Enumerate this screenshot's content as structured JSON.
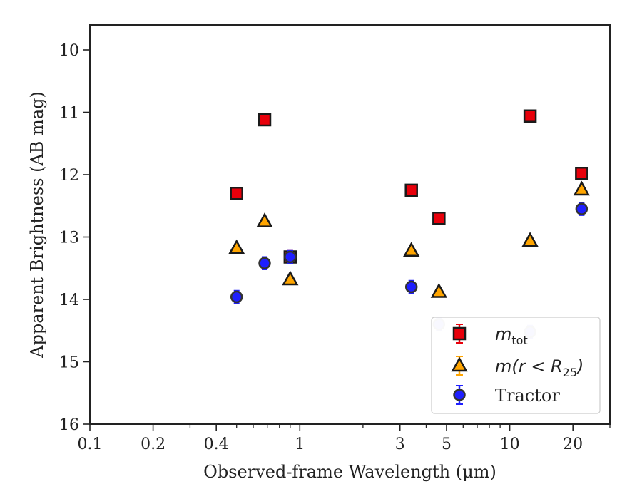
{
  "chart_data": {
    "type": "scatter",
    "xlabel": "Observed-frame Wavelength (μm)",
    "ylabel": "Apparent Brightness (AB mag)",
    "xscale": "log",
    "xlim": [
      0.1,
      30
    ],
    "ylim": [
      16,
      9.6
    ],
    "y_inverted": true,
    "xticks": [
      0.1,
      0.2,
      0.4,
      1,
      3,
      5,
      10,
      20
    ],
    "xtick_labels": [
      "0.1",
      "0.2",
      "0.4",
      "1",
      "3",
      "5",
      "10",
      "20"
    ],
    "yticks": [
      10,
      11,
      12,
      13,
      14,
      15,
      16
    ],
    "ytick_labels": [
      "10",
      "11",
      "12",
      "13",
      "14",
      "15",
      "16"
    ],
    "legend_position": "lower-right",
    "series": [
      {
        "name": "m_tot",
        "legend_base": "m",
        "legend_sub": "tot",
        "marker": "square",
        "color": "#e8000b",
        "x": [
          0.5,
          0.68,
          0.9,
          3.4,
          4.6,
          12.5,
          22
        ],
        "y": [
          12.3,
          11.12,
          13.32,
          12.25,
          12.7,
          11.06,
          11.98
        ],
        "yerr": [
          0.04,
          0.04,
          0.1,
          0.05,
          0.05,
          0.04,
          0.05
        ]
      },
      {
        "name": "m(r < R25)",
        "legend_base": "m(r < R",
        "legend_sub": "25",
        "legend_tail": ")",
        "marker": "triangle",
        "color": "#ffa500",
        "x": [
          0.5,
          0.68,
          0.9,
          3.4,
          4.6,
          12.5,
          22
        ],
        "y": [
          13.18,
          12.75,
          13.68,
          13.22,
          13.88,
          13.06,
          12.24
        ],
        "yerr": [
          0.03,
          0.03,
          0.03,
          0.03,
          0.03,
          0.03,
          0.03
        ]
      },
      {
        "name": "Tractor",
        "marker": "circle",
        "color": "#1f1fff",
        "x": [
          0.5,
          0.68,
          0.9,
          3.4,
          4.6,
          12.5,
          22
        ],
        "y": [
          13.96,
          13.42,
          13.32,
          13.8,
          14.4,
          14.52,
          12.55
        ],
        "yerr": [
          0.1,
          0.1,
          0.1,
          0.1,
          0.1,
          0.1,
          0.1
        ]
      }
    ]
  }
}
